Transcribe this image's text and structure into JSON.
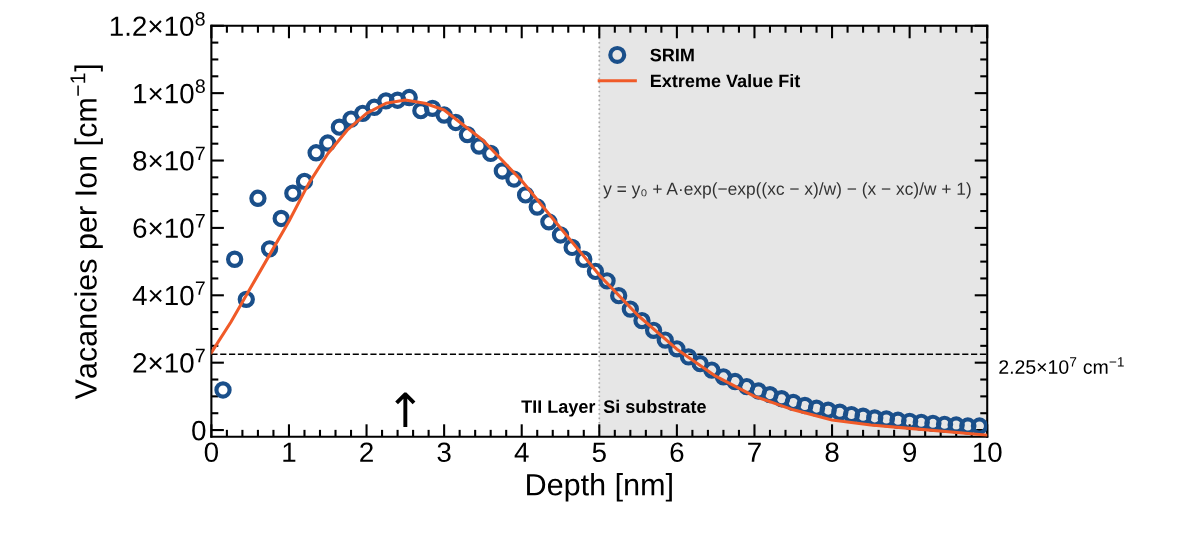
{
  "chart_data": {
    "type": "scatter",
    "xlabel": "Depth [nm]",
    "ylabel": "Vacancies per Ion [cm$^{−1}$]",
    "xlim": [
      0,
      10
    ],
    "xticks": [
      0,
      1,
      2,
      3,
      4,
      5,
      6,
      7,
      8,
      9,
      10
    ],
    "ylim": [
      -2000000,
      120000000
    ],
    "yticks": [
      {
        "value": 0,
        "label": "0"
      },
      {
        "value": 20000000,
        "label": "2×10$^{7}$"
      },
      {
        "value": 40000000,
        "label": "4×10$^{7}$"
      },
      {
        "value": 60000000,
        "label": "6×10$^{7}$"
      },
      {
        "value": 80000000,
        "label": "8×10$^{7}$"
      },
      {
        "value": 100000000,
        "label": "1×10$^{8}$"
      },
      {
        "value": 120000000,
        "label": "1.2×10$^{8}$"
      }
    ],
    "grid": false,
    "legend": "top right",
    "marker": "circle",
    "series": [
      {
        "name": "SRIM",
        "color": "#1a4f8a",
        "x": [
          0.15,
          0.3,
          0.45,
          0.6,
          0.75,
          0.9,
          1.05,
          1.2,
          1.35,
          1.5,
          1.65,
          1.8,
          1.95,
          2.1,
          2.25,
          2.4,
          2.55,
          2.7,
          2.85,
          3.0,
          3.15,
          3.3,
          3.45,
          3.6,
          3.75,
          3.9,
          4.05,
          4.2,
          4.35,
          4.5,
          4.65,
          4.8,
          4.95,
          5.1,
          5.25,
          5.4,
          5.55,
          5.7,
          5.85,
          6.0,
          6.15,
          6.3,
          6.45,
          6.6,
          6.75,
          6.9,
          7.05,
          7.2,
          7.35,
          7.5,
          7.65,
          7.8,
          7.95,
          8.1,
          8.25,
          8.4,
          8.55,
          8.7,
          8.85,
          9.0,
          9.15,
          9.3,
          9.45,
          9.6,
          9.75,
          9.9
        ],
        "values": [
          11900000,
          50700000,
          38800000,
          68800000,
          53800000,
          62800000,
          70300000,
          73800000,
          82300000,
          85200000,
          89900000,
          92300000,
          94000000,
          95800000,
          97700000,
          97900000,
          98700000,
          94800000,
          95500000,
          93500000,
          91300000,
          87700000,
          84300000,
          82100000,
          76900000,
          74500000,
          69800000,
          66200000,
          61800000,
          57900000,
          54200000,
          50700000,
          47100000,
          44300000,
          39900000,
          35900000,
          32500000,
          29600000,
          26700000,
          24100000,
          21700000,
          19700000,
          17800000,
          15800000,
          14400000,
          12900000,
          11600000,
          10500000,
          9300000,
          8200000,
          7300000,
          6500000,
          5900000,
          5300000,
          4600000,
          4100000,
          3600000,
          3300000,
          2900000,
          2600000,
          2300000,
          2000000,
          1700000,
          1500000,
          1200000,
          1200000
        ]
      },
      {
        "name": "Extreme Value Fit",
        "type": "line",
        "color": "#f05a28",
        "marker": "none",
        "line_style": "solid",
        "x": [
          0,
          0.25,
          0.5,
          0.75,
          1,
          1.25,
          1.5,
          1.75,
          2,
          2.25,
          2.5,
          2.75,
          3,
          3.5,
          4,
          4.5,
          5,
          5.5,
          6,
          6.5,
          7,
          7.5,
          8,
          8.5,
          9,
          9.5,
          10
        ],
        "values": [
          23000000,
          32000000,
          42000000,
          52000000,
          62000000,
          73000000,
          82000000,
          89000000,
          94000000,
          97000000,
          98000000,
          97000000,
          95000000,
          86000000,
          74000000,
          60000000,
          46000000,
          34000000,
          24000000,
          16000000,
          10000000,
          6000000,
          3000000,
          1500000,
          500000,
          -500000,
          -1500000
        ]
      }
    ],
    "ref_lines": [
      {
        "axis": "x",
        "value": 5,
        "color": "#aaaaaa",
        "line_style": "dotted"
      },
      {
        "axis": "y",
        "value": 22500000,
        "label": "2.25×10$^{7}$ cm$^{−1}$",
        "color": "#000000",
        "line_style": "dashed"
      }
    ],
    "bands": [
      {
        "axis": "x",
        "from": 5,
        "to": 10,
        "color": "#e6e6e6"
      }
    ],
    "annotations": [
      {
        "text": "TII Layer",
        "x": 4.95,
        "y": 4000000
      },
      {
        "text": "Si substrate",
        "x": 5.05,
        "y": 4000000
      },
      "y = y₀ + A·exp(−exp((xc − x)/w) − (x − xc)/w + 1)",
      "↑"
    ]
  }
}
